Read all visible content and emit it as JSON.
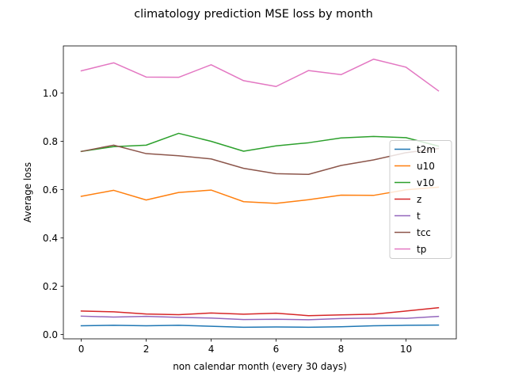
{
  "chart_data": {
    "type": "line",
    "title": "climatology prediction MSE loss by month",
    "xlabel": "non calendar month (every 30 days)",
    "ylabel": "Average loss",
    "x": [
      0,
      1,
      2,
      3,
      4,
      5,
      6,
      7,
      8,
      9,
      10,
      11
    ],
    "xlim": [
      -0.55,
      11.55
    ],
    "ylim": [
      -0.018,
      1.195
    ],
    "xticks": [
      0,
      2,
      4,
      6,
      8,
      10
    ],
    "xtick_labels": [
      "0",
      "2",
      "4",
      "6",
      "8",
      "10"
    ],
    "yticks": [
      0.0,
      0.2,
      0.4,
      0.6,
      0.8,
      1.0
    ],
    "ytick_labels": [
      "0.0",
      "0.2",
      "0.4",
      "0.6",
      "0.8",
      "1.0"
    ],
    "grid": false,
    "legend_position": "center-right",
    "series": [
      {
        "name": "t2m",
        "color": "#1f77b4",
        "values": [
          0.036,
          0.038,
          0.036,
          0.038,
          0.034,
          0.03,
          0.031,
          0.03,
          0.032,
          0.036,
          0.038,
          0.039
        ]
      },
      {
        "name": "u10",
        "color": "#ff7f0e",
        "values": [
          0.572,
          0.597,
          0.557,
          0.588,
          0.598,
          0.55,
          0.543,
          0.558,
          0.577,
          0.576,
          0.599,
          0.61
        ]
      },
      {
        "name": "v10",
        "color": "#2ca02c",
        "values": [
          0.758,
          0.778,
          0.784,
          0.833,
          0.8,
          0.759,
          0.781,
          0.794,
          0.814,
          0.82,
          0.815,
          0.78
        ]
      },
      {
        "name": "z",
        "color": "#d62728",
        "values": [
          0.097,
          0.094,
          0.085,
          0.082,
          0.089,
          0.084,
          0.088,
          0.078,
          0.081,
          0.084,
          0.097,
          0.111
        ]
      },
      {
        "name": "t",
        "color": "#9467bd",
        "values": [
          0.076,
          0.072,
          0.075,
          0.071,
          0.068,
          0.062,
          0.063,
          0.061,
          0.066,
          0.068,
          0.067,
          0.075
        ]
      },
      {
        "name": "tcc",
        "color": "#8c564b",
        "values": [
          0.758,
          0.784,
          0.749,
          0.74,
          0.727,
          0.688,
          0.666,
          0.663,
          0.7,
          0.723,
          0.753,
          0.77
        ]
      },
      {
        "name": "tp",
        "color": "#e377c2",
        "values": [
          1.092,
          1.125,
          1.066,
          1.065,
          1.117,
          1.051,
          1.027,
          1.093,
          1.076,
          1.14,
          1.107,
          1.009
        ]
      }
    ]
  }
}
